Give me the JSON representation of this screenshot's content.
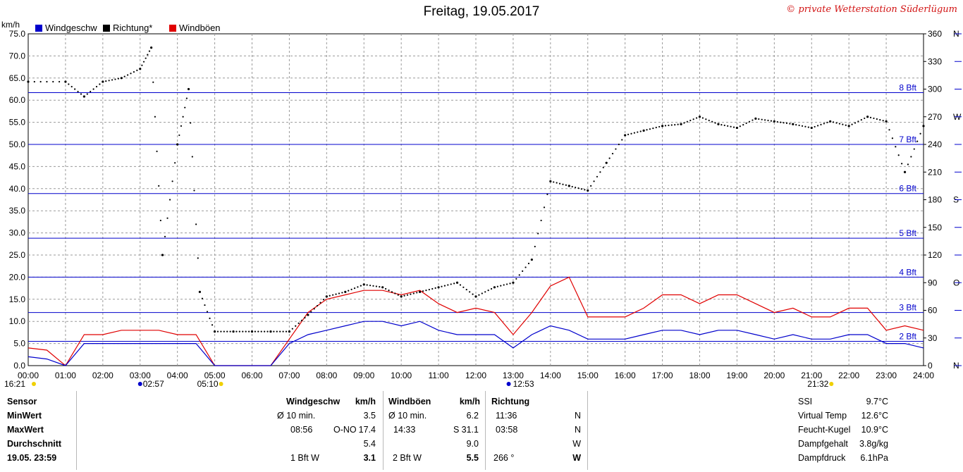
{
  "title": "Freitag, 19.05.2017",
  "copyright": "© private Wetterstation Süderlügum",
  "axes": {
    "left_unit": "km/h",
    "right_deg_labels": [
      "0",
      "30",
      "60",
      "90",
      "120",
      "150",
      "180",
      "210",
      "240",
      "270",
      "300",
      "330",
      "360"
    ],
    "right_dir_labels": {
      "0": "N",
      "90": "O",
      "180": "S",
      "270": "W",
      "360": "N"
    },
    "bft_labels": [
      "2 Bft",
      "3 Bft",
      "4 Bft",
      "5 Bft",
      "6 Bft",
      "7 Bft",
      "8 Bft"
    ]
  },
  "legend": [
    {
      "label": "Windgeschw",
      "color": "#0000cc"
    },
    {
      "label": "Richtung*",
      "color": "#000000"
    },
    {
      "label": "Windböen",
      "color": "#e00000"
    }
  ],
  "markers": {
    "min_speed_time": "16:21",
    "max_gust_mark": "02:57",
    "sunrise": "05:10",
    "noon_mark": "12:53",
    "sunset": "21:32"
  },
  "chart_data": {
    "type": "line",
    "title": "Freitag, 19.05.2017",
    "ylabel": "km/h",
    "ylim": [
      0,
      75
    ],
    "y2lim": [
      0,
      360
    ],
    "xlim_hours": [
      0,
      24
    ],
    "x_tick_labels": [
      "00:00",
      "01:00",
      "02:00",
      "03:00",
      "04:00",
      "05:00",
      "06:00",
      "07:00",
      "08:00",
      "09:00",
      "10:00",
      "11:00",
      "12:00",
      "13:00",
      "14:00",
      "15:00",
      "16:00",
      "17:00",
      "18:00",
      "19:00",
      "20:00",
      "21:00",
      "22:00",
      "23:00",
      "24:00"
    ],
    "y_tick_labels": [
      "0.0",
      "5.0",
      "10.0",
      "15.0",
      "20.0",
      "25.0",
      "30.0",
      "35.0",
      "40.0",
      "45.0",
      "50.0",
      "55.0",
      "60.0",
      "65.0",
      "70.0",
      "75.0"
    ],
    "bft_thresholds_kmh": [
      5.5,
      12,
      20,
      28.8,
      38.9,
      50,
      61.7
    ],
    "grid": true,
    "series": [
      {
        "name": "Windgeschw",
        "color": "#0000cc",
        "x": [
          0,
          0.5,
          1,
          1.5,
          2,
          2.5,
          3,
          3.5,
          4,
          4.5,
          5,
          5.5,
          6,
          6.5,
          7,
          7.5,
          8,
          8.5,
          9,
          9.5,
          10,
          10.5,
          11,
          11.5,
          12,
          12.5,
          13,
          13.5,
          14,
          14.5,
          15,
          15.5,
          16,
          16.5,
          17,
          17.5,
          18,
          18.5,
          19,
          19.5,
          20,
          20.5,
          21,
          21.5,
          22,
          22.5,
          23,
          23.5,
          24
        ],
        "values": [
          2,
          1.5,
          0,
          5,
          5,
          5,
          5,
          5,
          5,
          5,
          0,
          0,
          0,
          0,
          5,
          7,
          8,
          9,
          10,
          10,
          9,
          10,
          8,
          7,
          7,
          7,
          4,
          7,
          9,
          8,
          6,
          6,
          6,
          7,
          8,
          8,
          7,
          8,
          8,
          7,
          6,
          7,
          6,
          6,
          7,
          7,
          5,
          5,
          4
        ]
      },
      {
        "name": "Windböen",
        "color": "#e00000",
        "x": [
          0,
          0.5,
          1,
          1.5,
          2,
          2.5,
          3,
          3.5,
          4,
          4.5,
          5,
          5.5,
          6,
          6.5,
          7,
          7.5,
          8,
          8.5,
          9,
          9.5,
          10,
          10.5,
          11,
          11.5,
          12,
          12.5,
          13,
          13.5,
          14,
          14.5,
          15,
          15.5,
          16,
          16.5,
          17,
          17.5,
          18,
          18.5,
          19,
          19.5,
          20,
          20.5,
          21,
          21.5,
          22,
          22.5,
          23,
          23.5,
          24
        ],
        "values": [
          4,
          3.5,
          0,
          7,
          7,
          8,
          8,
          8,
          7,
          7,
          0,
          0,
          0,
          0,
          6,
          12,
          15,
          16,
          17,
          17,
          16,
          17,
          14,
          12,
          13,
          12,
          7,
          12,
          18,
          20,
          11,
          11,
          11,
          13,
          16,
          16,
          14,
          16,
          16,
          14,
          12,
          13,
          11,
          11,
          13,
          13,
          8,
          9,
          8
        ]
      },
      {
        "name": "Richtung*",
        "color": "#000000",
        "axis": "right",
        "x": [
          0,
          1,
          1.5,
          2,
          2.5,
          3,
          3.3,
          3.6,
          4,
          4.3,
          4.6,
          5,
          5.5,
          6,
          6.5,
          7,
          7.5,
          8,
          8.5,
          9,
          9.5,
          10,
          10.5,
          11,
          11.5,
          12,
          12.5,
          13,
          13.5,
          14,
          14.5,
          15,
          15.5,
          16,
          16.5,
          17,
          17.5,
          18,
          18.5,
          19,
          19.5,
          20,
          20.5,
          21,
          21.5,
          22,
          22.5,
          23,
          23.5,
          24
        ],
        "values": [
          308,
          308,
          292,
          308,
          312,
          322,
          345,
          120,
          240,
          300,
          80,
          37,
          37,
          37,
          37,
          37,
          55,
          75,
          80,
          88,
          85,
          75,
          80,
          85,
          90,
          75,
          85,
          90,
          115,
          200,
          195,
          190,
          220,
          250,
          255,
          260,
          262,
          270,
          262,
          258,
          268,
          265,
          262,
          258,
          265,
          260,
          270,
          265,
          210,
          260
        ]
      }
    ]
  },
  "info_table": {
    "sensor_col": {
      "header": "Sensor",
      "rows": [
        "MinWert",
        "MaxWert",
        "Durchschnitt",
        "19.05. 23:59"
      ]
    },
    "wind_col": {
      "header": "Windgeschw",
      "unit": "km/h",
      "rows": [
        {
          "left": "Ø 10 min.",
          "value": "3.5"
        },
        {
          "left": "08:56",
          "dir": "O-NO",
          "value": "17.4"
        },
        {
          "value": "5.4"
        },
        {
          "left": "1 Bft W",
          "value": "3.1"
        }
      ]
    },
    "gust_col": {
      "header": "Windböen",
      "unit": "km/h",
      "rows": [
        {
          "left": "Ø 10 min.",
          "value": "6.2"
        },
        {
          "left": "14:33",
          "dir": "S",
          "value": "31.1"
        },
        {
          "value": "9.0"
        },
        {
          "left": "2 Bft W",
          "value": "5.5"
        }
      ]
    },
    "dir_col": {
      "header": "Richtung",
      "rows": [
        {
          "left": "11:36",
          "value": "N"
        },
        {
          "left": "03:58",
          "value": "N"
        },
        {
          "value": "W"
        },
        {
          "left": "266 °",
          "value": "W"
        }
      ]
    },
    "extra": [
      {
        "label": "SSI",
        "value": "9.7°C"
      },
      {
        "label": "Virtual Temp",
        "value": "12.6°C"
      },
      {
        "label": "Feucht-Kugel",
        "value": "10.9°C"
      },
      {
        "label": "Dampfgehalt",
        "value": "3.8g/kg"
      },
      {
        "label": "Dampfdruck",
        "value": "6.1hPa"
      }
    ]
  }
}
